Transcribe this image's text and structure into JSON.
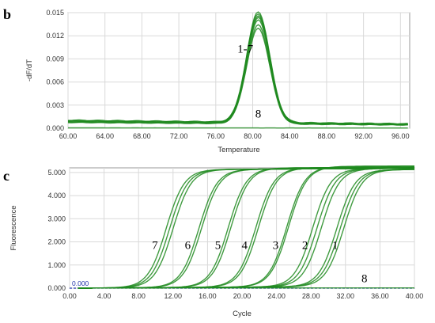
{
  "chart_data": [
    {
      "panel": "b",
      "type": "line",
      "xlabel": "Temperature",
      "ylabel": "-dF/dT",
      "xlim": [
        60,
        97
      ],
      "ylim": [
        0,
        0.015
      ],
      "x_ticks": [
        "60.00",
        "64.00",
        "68.00",
        "72.00",
        "76.00",
        "80.00",
        "84.00",
        "88.00",
        "92.00",
        "96.00"
      ],
      "y_ticks": [
        "0.000",
        "0.003",
        "0.006",
        "0.009",
        "0.012",
        "0.015"
      ],
      "grid": true,
      "line_color": "#1e8a1e",
      "peak_x": 80.6,
      "series": [
        {
          "peak": 0.0143,
          "baseline": 0.00105
        },
        {
          "peak": 0.0141,
          "baseline": 0.001
        },
        {
          "peak": 0.0139,
          "baseline": 0.00095
        },
        {
          "peak": 0.0137,
          "baseline": 0.0009
        },
        {
          "peak": 0.0134,
          "baseline": 0.00085
        },
        {
          "peak": 0.0128,
          "baseline": 0.0008
        },
        {
          "peak": 0.0124,
          "baseline": 0.00075
        },
        {
          "peak": 0.0,
          "baseline": 5e-05
        }
      ],
      "annotations": [
        {
          "text": "1-7",
          "x": 79.2,
          "y": 0.0098
        },
        {
          "text": "8",
          "x": 80.6,
          "y": 0.0014
        }
      ]
    },
    {
      "panel": "c",
      "type": "line",
      "xlabel": "Cycle",
      "ylabel": "Fluorescence",
      "xlim": [
        0,
        40
      ],
      "ylim": [
        0,
        5.2
      ],
      "x_ticks": [
        "0.00",
        "4.00",
        "8.00",
        "12.00",
        "16.00",
        "20.00",
        "24.00",
        "28.00",
        "32.00",
        "36.00",
        "40.00"
      ],
      "y_ticks": [
        "0.000",
        "1.000",
        "2.000",
        "3.000",
        "4.000",
        "5.000"
      ],
      "grid": true,
      "line_color": "#1e8a1e",
      "threshold": 0.0,
      "threshold_label": "0.000",
      "threshold_color": "#2233aa",
      "series": [
        {
          "label": "7",
          "midpoints": [
            11.2,
            11.6,
            12.0
          ],
          "plateau": 5.1
        },
        {
          "label": "6",
          "midpoints": [
            15.0,
            15.3
          ],
          "plateau": 5.1
        },
        {
          "label": "5",
          "midpoints": [
            18.4,
            18.7
          ],
          "plateau": 5.15
        },
        {
          "label": "4",
          "midpoints": [
            21.6,
            21.9
          ],
          "plateau": 5.15
        },
        {
          "label": "3",
          "midpoints": [
            25.2,
            25.4
          ],
          "plateau": 5.2
        },
        {
          "label": "2",
          "midpoints": [
            28.2,
            28.7,
            29.2
          ],
          "plateau": 5.1
        },
        {
          "label": "1",
          "midpoints": [
            31.0,
            31.4,
            31.8
          ],
          "plateau": 5.05
        },
        {
          "label": "8",
          "midpoints": [],
          "plateau": 0.0
        }
      ],
      "annotations": [
        {
          "text": "7",
          "x": 9.9,
          "y": 1.7
        },
        {
          "text": "6",
          "x": 13.7,
          "y": 1.7
        },
        {
          "text": "5",
          "x": 17.2,
          "y": 1.7
        },
        {
          "text": "4",
          "x": 20.3,
          "y": 1.7
        },
        {
          "text": "3",
          "x": 23.9,
          "y": 1.7
        },
        {
          "text": "2",
          "x": 27.3,
          "y": 1.7
        },
        {
          "text": "1",
          "x": 30.8,
          "y": 1.7
        },
        {
          "text": "8",
          "x": 34.2,
          "y": 0.25
        }
      ]
    }
  ]
}
